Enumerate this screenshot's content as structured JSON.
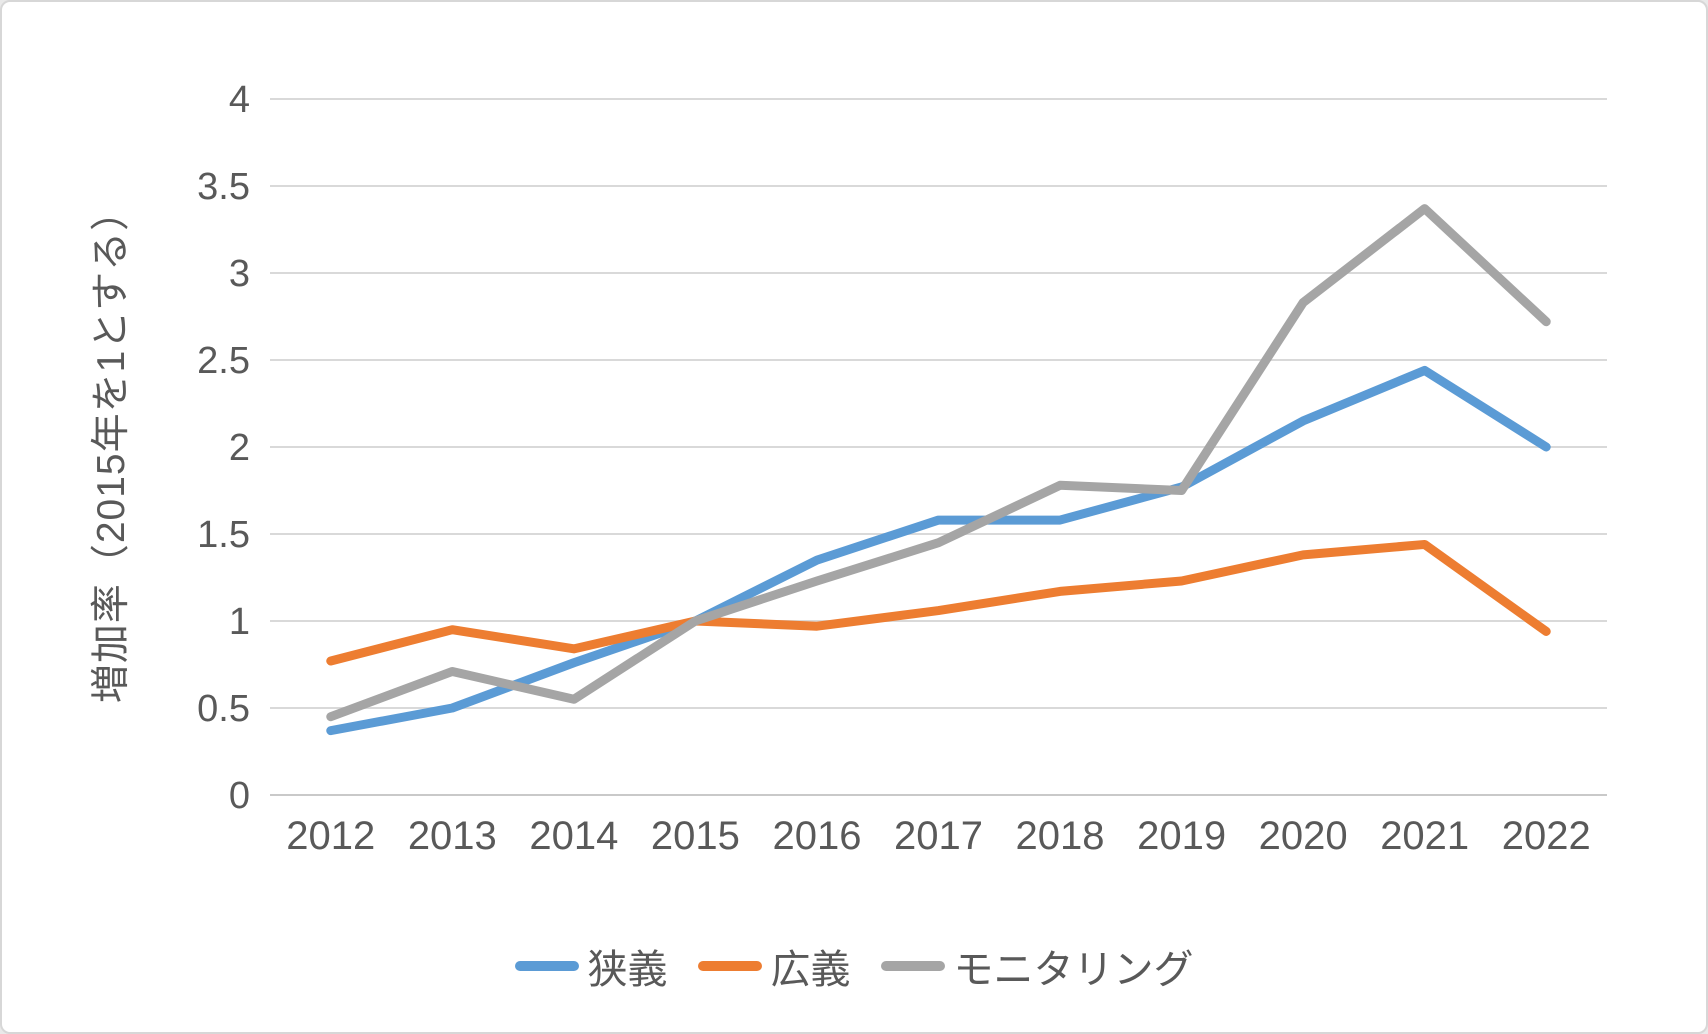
{
  "colors": {
    "background": "#FFFFFF",
    "frame_border": "#D7D7D7",
    "gridline": "#D9D9D9",
    "zero_axis_line": "#C9C9C9",
    "axis_text": "#595959",
    "series_blue": "#5B9BD5",
    "series_orange": "#ED7D31",
    "series_gray": "#A5A5A5"
  },
  "chart_data": {
    "type": "line",
    "title": "",
    "xlabel": "",
    "ylabel": "増加率（2015年を1とする）",
    "grid": "horizontal",
    "legend_position": "bottom",
    "ylim": [
      0,
      4
    ],
    "ytick_step": 0.5,
    "yticks": [
      0,
      0.5,
      1,
      1.5,
      2,
      2.5,
      3,
      3.5,
      4
    ],
    "categories": [
      "2012",
      "2013",
      "2014",
      "2015",
      "2016",
      "2017",
      "2018",
      "2019",
      "2020",
      "2021",
      "2022"
    ],
    "series": [
      {
        "name": "狭義",
        "color": "#5B9BD5",
        "values": [
          0.37,
          0.5,
          0.76,
          1.0,
          1.35,
          1.58,
          1.58,
          1.77,
          2.15,
          2.44,
          2.0
        ]
      },
      {
        "name": "広義",
        "color": "#ED7D31",
        "values": [
          0.77,
          0.95,
          0.84,
          1.0,
          0.97,
          1.06,
          1.17,
          1.23,
          1.38,
          1.44,
          0.94
        ]
      },
      {
        "name": "モニタリング",
        "color": "#A5A5A5",
        "values": [
          0.45,
          0.71,
          0.55,
          1.0,
          1.23,
          1.45,
          1.78,
          1.75,
          2.83,
          3.37,
          2.72
        ]
      }
    ]
  }
}
